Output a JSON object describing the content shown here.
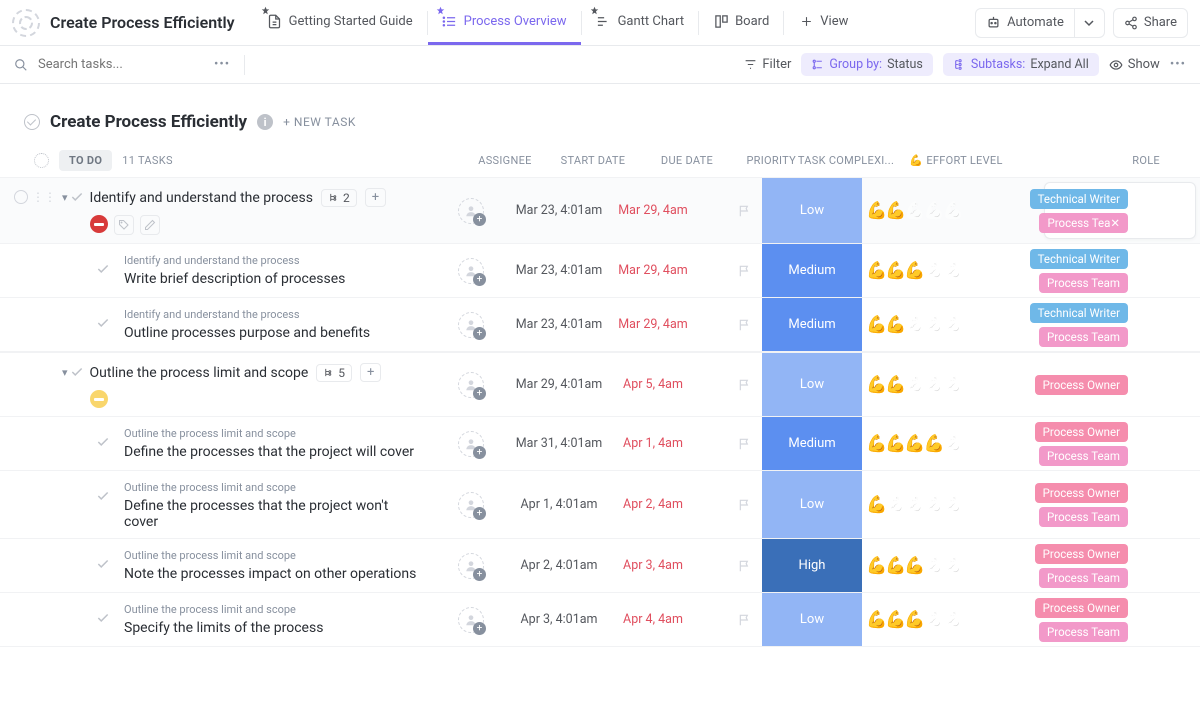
{
  "workspace": {
    "title": "Create Process Efficiently"
  },
  "tabs": [
    {
      "label": "Getting Started Guide",
      "icon": "doc"
    },
    {
      "label": "Process Overview",
      "icon": "list",
      "active": true
    },
    {
      "label": "Gantt Chart",
      "icon": "gantt"
    },
    {
      "label": "Board",
      "icon": "board"
    },
    {
      "label": "View",
      "icon": "plus"
    }
  ],
  "topRight": {
    "automate": "Automate",
    "share": "Share"
  },
  "toolbar": {
    "searchPlaceholder": "Search tasks...",
    "filter": "Filter",
    "groupByLabel": "Group by:",
    "groupByValue": "Status",
    "subtasksLabel": "Subtasks:",
    "subtasksValue": "Expand All",
    "show": "Show"
  },
  "listHeader": {
    "title": "Create Process Efficiently",
    "newTask": "+ NEW TASK"
  },
  "group": {
    "status": "TO DO",
    "count": "11 TASKS"
  },
  "columns": {
    "assignee": "ASSIGNEE",
    "start": "START DATE",
    "due": "DUE DATE",
    "priority": "PRIORITY",
    "complexity": "TASK COMPLEXI...",
    "effort": "💪 EFFORT LEVEL",
    "role": "ROLE"
  },
  "complexityColors": {
    "Low": "#92b5f5",
    "Medium": "#5c8ff0",
    "High": "#3a6fb8"
  },
  "roleColors": {
    "Technical Writer": "#6fb8e8",
    "Process Team": "#f299c9",
    "Process Owner": "#f58dad",
    "Process Tea": "#f299c9"
  },
  "tasks": [
    {
      "type": "parent",
      "first": true,
      "title": "Identify and understand the process",
      "subCount": "2",
      "start": "Mar 23, 4:01am",
      "due": "Mar 29, 4am",
      "complexity": "Low",
      "effort": 2,
      "roles": [
        "Technical Writer",
        "Process Tea✕"
      ],
      "statusIcon": "stop",
      "showMeta": true
    },
    {
      "type": "sub",
      "parentLabel": "Identify and understand the process",
      "title": "Write brief description of processes",
      "start": "Mar 23, 4:01am",
      "due": "Mar 29, 4am",
      "complexity": "Medium",
      "effort": 3,
      "roles": [
        "Technical Writer",
        "Process Team"
      ]
    },
    {
      "type": "sub",
      "parentLabel": "Identify and understand the process",
      "title": "Outline processes purpose and benefits",
      "start": "Mar 23, 4:01am",
      "due": "Mar 29, 4am",
      "complexity": "Medium",
      "effort": 2,
      "roles": [
        "Technical Writer",
        "Process Team"
      ]
    },
    {
      "type": "parent",
      "title": "Outline the process limit and scope",
      "subCount": "5",
      "start": "Mar 29, 4:01am",
      "due": "Apr 5, 4am",
      "complexity": "Low",
      "effort": 2,
      "roles": [
        "Process Owner"
      ],
      "statusIcon": "pause"
    },
    {
      "type": "sub",
      "parentLabel": "Outline the process limit and scope",
      "title": "Define the processes that the project will cover",
      "start": "Mar 31, 4:01am",
      "due": "Apr 1, 4am",
      "complexity": "Medium",
      "effort": 4,
      "roles": [
        "Process Owner",
        "Process Team"
      ]
    },
    {
      "type": "sub",
      "parentLabel": "Outline the process limit and scope",
      "title": "Define the processes that the project won't cover",
      "start": "Apr 1, 4:01am",
      "due": "Apr 2, 4am",
      "complexity": "Low",
      "effort": 1,
      "roles": [
        "Process Owner",
        "Process Team"
      ]
    },
    {
      "type": "sub",
      "parentLabel": "Outline the process limit and scope",
      "title": "Note the processes impact on other operations",
      "start": "Apr 2, 4:01am",
      "due": "Apr 3, 4am",
      "complexity": "High",
      "effort": 3,
      "roles": [
        "Process Owner",
        "Process Team"
      ]
    },
    {
      "type": "sub",
      "parentLabel": "Outline the process limit and scope",
      "title": "Specify the limits of the process",
      "start": "Apr 3, 4:01am",
      "due": "Apr 4, 4am",
      "complexity": "Low",
      "effort": 3,
      "roles": [
        "Process Owner",
        "Process Team"
      ]
    }
  ]
}
